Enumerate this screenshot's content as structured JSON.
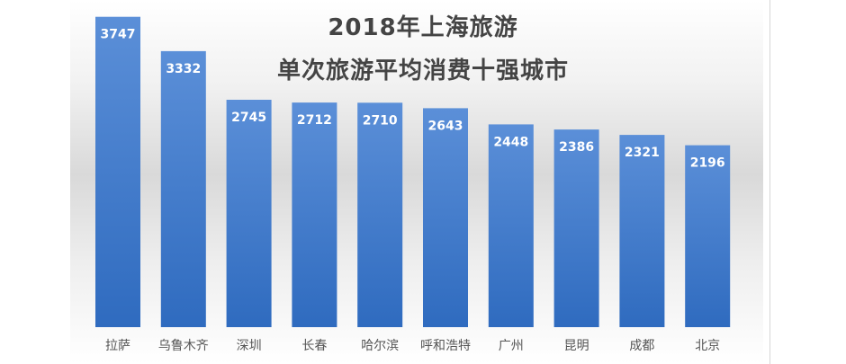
{
  "chart_data": {
    "type": "bar",
    "title_line1": "2018年上海旅游",
    "title_line2": "单次旅游平均消费十强城市",
    "categories": [
      "拉萨",
      "乌鲁木齐",
      "深圳",
      "长春",
      "哈尔滨",
      "呼和浩特",
      "广州",
      "昆明",
      "成都",
      "北京"
    ],
    "values": [
      3747,
      3332,
      2745,
      2712,
      2710,
      2643,
      2448,
      2386,
      2321,
      2196
    ],
    "data_labels": [
      "3747",
      "3332",
      "2745",
      "2712",
      "2710",
      "2643",
      "2448",
      "2386",
      "2321",
      "2196"
    ],
    "ylim": [
      0,
      3950
    ],
    "bar_color_top": "#5b8fd8",
    "bar_color_bottom": "#2f6bbf",
    "grid": false,
    "legend": "none"
  }
}
